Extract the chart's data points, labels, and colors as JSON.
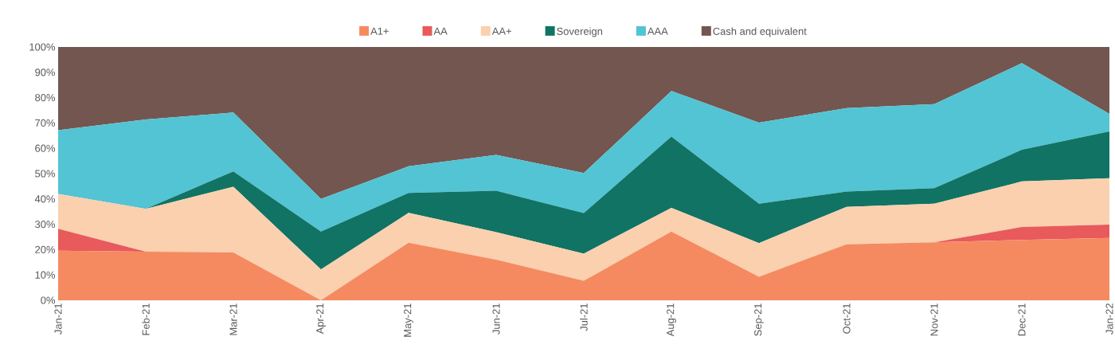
{
  "chart_data": {
    "type": "area",
    "stacked": true,
    "legend": "top",
    "grid": false,
    "categories": [
      "Jan-21",
      "Feb-21",
      "Mar-21",
      "Apr-21",
      "May-21",
      "Jun-21",
      "Jul-21",
      "Aug-21",
      "Sep-21",
      "Oct-21",
      "Nov-21",
      "Dec-21",
      "Jan-22"
    ],
    "ylim": [
      0,
      100
    ],
    "yticks": [
      {
        "value": 0,
        "label": "0%"
      },
      {
        "value": 10,
        "label": "10%"
      },
      {
        "value": 20,
        "label": "20%"
      },
      {
        "value": 30,
        "label": "30%"
      },
      {
        "value": 40,
        "label": "40%"
      },
      {
        "value": 50,
        "label": "50%"
      },
      {
        "value": 60,
        "label": "60%"
      },
      {
        "value": 70,
        "label": "70%"
      },
      {
        "value": 80,
        "label": "80%"
      },
      {
        "value": 90,
        "label": "90%"
      },
      {
        "value": 100,
        "label": "100%"
      }
    ],
    "series": [
      {
        "name": "A1+",
        "color": "#f58a60",
        "values": [
          19.6,
          19.2,
          18.9,
          0,
          22.7,
          16.0,
          7.7,
          27.1,
          9.3,
          22.1,
          22.9,
          23.8,
          24.6
        ]
      },
      {
        "name": "AA",
        "color": "#e85a5c",
        "values": [
          8.6,
          0,
          0,
          0,
          0,
          0,
          0,
          0,
          0,
          0,
          0,
          5.1,
          5.3
        ]
      },
      {
        "name": "AA+",
        "color": "#fad0ae",
        "values": [
          13.8,
          16.9,
          25.9,
          12.2,
          11.8,
          10.9,
          10.7,
          9.4,
          13.3,
          14.8,
          15.2,
          18.0,
          18.3
        ]
      },
      {
        "name": "Sovereign",
        "color": "#117364",
        "values": [
          0,
          0,
          6.1,
          14.9,
          7.9,
          16.3,
          16.0,
          28.1,
          15.5,
          6.0,
          6.2,
          12.5,
          18.5
        ]
      },
      {
        "name": "AAA",
        "color": "#52c4d4",
        "values": [
          25.1,
          35.3,
          23.2,
          12.9,
          10.5,
          14.2,
          15.8,
          18.0,
          32.0,
          33.0,
          33.1,
          34.2,
          6.9
        ]
      },
      {
        "name": "Cash and equivalent",
        "color": "#735650",
        "values": [
          32.9,
          28.6,
          25.9,
          60.0,
          47.1,
          42.6,
          49.8,
          17.4,
          29.9,
          24.1,
          22.6,
          6.4,
          26.4
        ]
      }
    ]
  }
}
